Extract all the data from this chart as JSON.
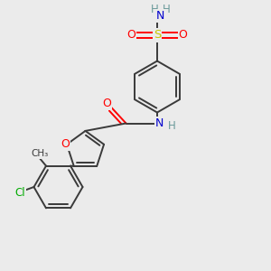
{
  "background_color": "#ebebeb",
  "bond_color": "#3a3a3a",
  "atom_colors": {
    "O": "#ff0000",
    "N": "#0000cd",
    "S": "#c8c800",
    "Cl": "#00aa00",
    "C": "#3a3a3a",
    "H": "#6a9a9a"
  },
  "fig_width": 3.0,
  "fig_height": 3.0,
  "dpi": 100
}
